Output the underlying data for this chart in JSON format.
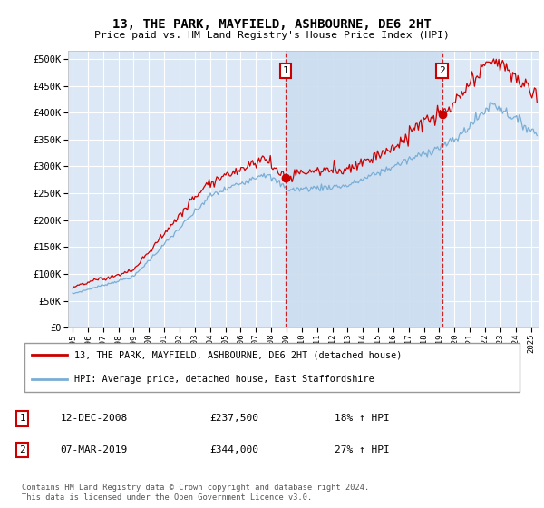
{
  "title": "13, THE PARK, MAYFIELD, ASHBOURNE, DE6 2HT",
  "subtitle": "Price paid vs. HM Land Registry's House Price Index (HPI)",
  "yticks": [
    0,
    50000,
    100000,
    150000,
    200000,
    250000,
    300000,
    350000,
    400000,
    450000,
    500000
  ],
  "ylim": [
    0,
    515000
  ],
  "xlim_start": 1994.7,
  "xlim_end": 2025.5,
  "background_color": "#ffffff",
  "plot_bg_color": "#dce8f5",
  "grid_color": "#ffffff",
  "shade_color": "#ccddf0",
  "transaction1_x": 2008.95,
  "transaction1_price": 237500,
  "transaction2_x": 2019.18,
  "transaction2_price": 344000,
  "legend_line1": "13, THE PARK, MAYFIELD, ASHBOURNE, DE6 2HT (detached house)",
  "legend_line2": "HPI: Average price, detached house, East Staffordshire",
  "table_row1_num": "1",
  "table_row1_date": "12-DEC-2008",
  "table_row1_price": "£237,500",
  "table_row1_pct": "18% ↑ HPI",
  "table_row2_num": "2",
  "table_row2_date": "07-MAR-2019",
  "table_row2_price": "£344,000",
  "table_row2_pct": "27% ↑ HPI",
  "footer": "Contains HM Land Registry data © Crown copyright and database right 2024.\nThis data is licensed under the Open Government Licence v3.0.",
  "red_color": "#cc0000",
  "blue_color": "#7aaed6",
  "dot_color": "#cc0000"
}
